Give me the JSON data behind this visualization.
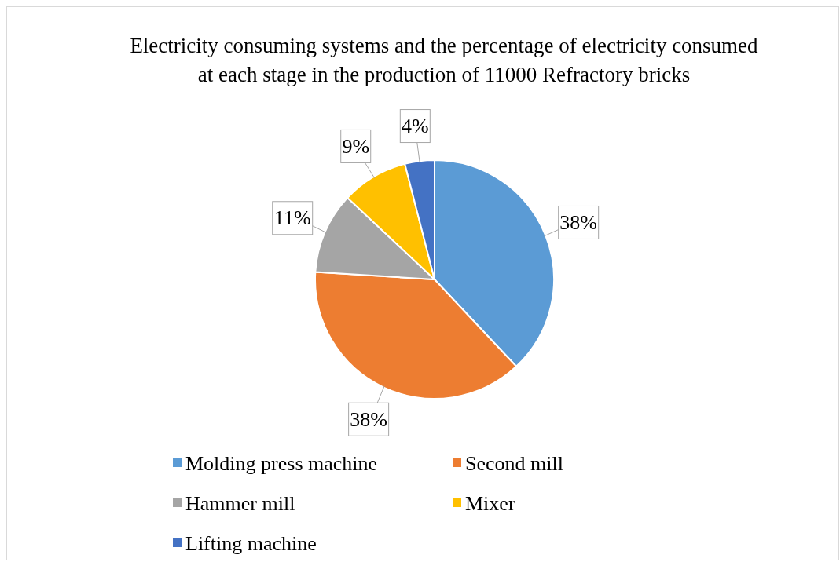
{
  "chart_data": {
    "type": "pie",
    "title": "Electricity consuming systems and the percentage of electricity consumed at each stage in the production of 11000 Refractory bricks",
    "categories": [
      "Molding press machine",
      "Second mill",
      "Hammer mill",
      "Mixer",
      "Lifting machine"
    ],
    "values": [
      38,
      38,
      11,
      9,
      4
    ],
    "colors": [
      "#5b9bd5",
      "#ed7d31",
      "#a5a5a5",
      "#ffc000",
      "#4472c4"
    ],
    "value_labels": [
      "38%",
      "38%",
      "11%",
      "9%",
      "4%"
    ],
    "legend": "bottom"
  }
}
